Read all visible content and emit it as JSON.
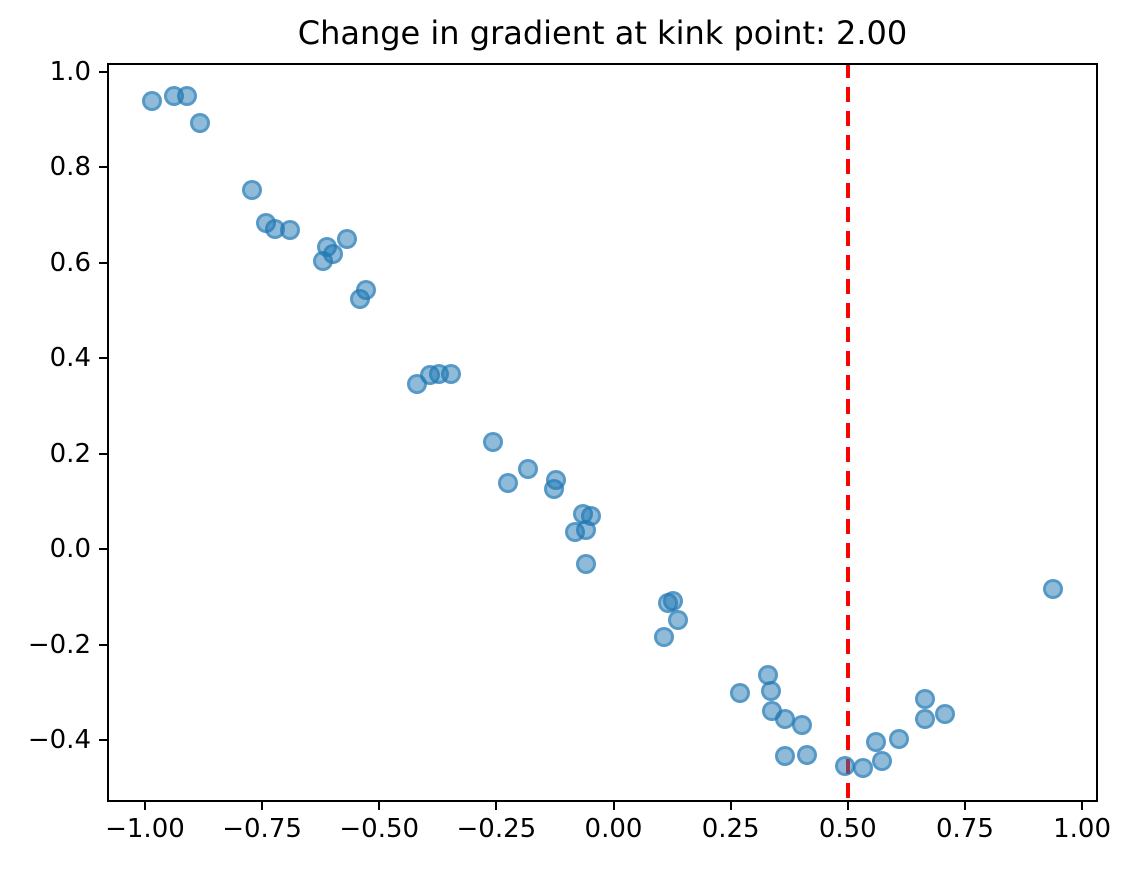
{
  "chart_data": {
    "type": "scatter",
    "title": "Change in gradient at kink point: 2.00",
    "xlabel": "",
    "ylabel": "",
    "xlim": [
      -1.081,
      1.034
    ],
    "ylim": [
      -0.53,
      1.019
    ],
    "grid": false,
    "legend": "none",
    "x_ticks": {
      "values": [
        -1.0,
        -0.75,
        -0.5,
        -0.25,
        0.0,
        0.25,
        0.5,
        0.75,
        1.0
      ],
      "labels": [
        "−1.00",
        "−0.75",
        "−0.50",
        "−0.25",
        "0.00",
        "0.25",
        "0.50",
        "0.75",
        "1.00"
      ]
    },
    "y_ticks": {
      "values": [
        1.0,
        0.8,
        0.6,
        0.4,
        0.2,
        0.0,
        -0.2,
        -0.4
      ],
      "labels": [
        "1.0",
        "0.8",
        "0.6",
        "0.4",
        "0.2",
        "0.0",
        "−0.2",
        "−0.4"
      ]
    },
    "series": [
      {
        "name": "scatter-samples",
        "marker_color": "#1f77b4",
        "marker_alpha": 0.5,
        "points": [
          [
            -0.985,
            0.939
          ],
          [
            -0.938,
            0.95
          ],
          [
            -0.911,
            0.95
          ],
          [
            -0.883,
            0.894
          ],
          [
            -0.771,
            0.753
          ],
          [
            -0.741,
            0.683
          ],
          [
            -0.722,
            0.672
          ],
          [
            -0.691,
            0.669
          ],
          [
            -0.568,
            0.651
          ],
          [
            -0.611,
            0.634
          ],
          [
            -0.599,
            0.618
          ],
          [
            -0.619,
            0.604
          ],
          [
            -0.529,
            0.543
          ],
          [
            -0.542,
            0.524
          ],
          [
            -0.42,
            0.347
          ],
          [
            -0.391,
            0.365
          ],
          [
            -0.373,
            0.368
          ],
          [
            -0.347,
            0.368
          ],
          [
            -0.258,
            0.224
          ],
          [
            -0.182,
            0.169
          ],
          [
            -0.226,
            0.138
          ],
          [
            -0.123,
            0.145
          ],
          [
            -0.127,
            0.126
          ],
          [
            -0.066,
            0.073
          ],
          [
            -0.049,
            0.069
          ],
          [
            -0.082,
            0.035
          ],
          [
            -0.059,
            0.04
          ],
          [
            -0.058,
            -0.031
          ],
          [
            0.117,
            -0.112
          ],
          [
            0.127,
            -0.108
          ],
          [
            0.138,
            -0.149
          ],
          [
            0.108,
            -0.184
          ],
          [
            0.269,
            -0.301
          ],
          [
            0.329,
            -0.264
          ],
          [
            0.336,
            -0.297
          ],
          [
            0.338,
            -0.339
          ],
          [
            0.367,
            -0.356
          ],
          [
            0.402,
            -0.369
          ],
          [
            0.367,
            -0.434
          ],
          [
            0.413,
            -0.431
          ],
          [
            0.493,
            -0.455
          ],
          [
            0.532,
            -0.458
          ],
          [
            0.572,
            -0.444
          ],
          [
            0.56,
            -0.404
          ],
          [
            0.61,
            -0.397
          ],
          [
            0.665,
            -0.314
          ],
          [
            0.665,
            -0.357
          ],
          [
            0.708,
            -0.346
          ],
          [
            0.938,
            -0.084
          ]
        ]
      }
    ],
    "annotations": [
      {
        "type": "vline",
        "name": "kink-point-line",
        "x": 0.5,
        "color": "#ff0000",
        "style": "dashed",
        "linewidth": 4
      }
    ]
  }
}
